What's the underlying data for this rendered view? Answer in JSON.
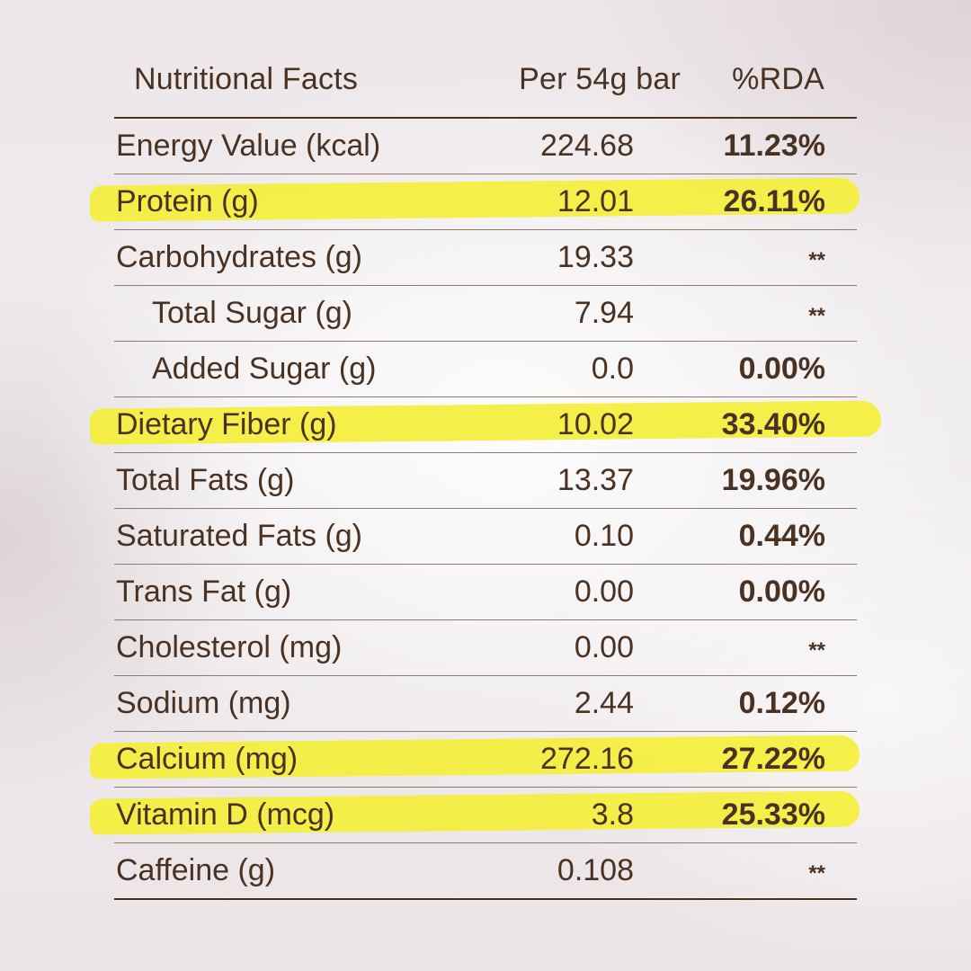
{
  "table": {
    "header": {
      "name": "Nutritional Facts",
      "per": "Per 54g bar",
      "rda": "%RDA"
    },
    "rows": [
      {
        "name": "Energy Value (kcal)",
        "per": "224.68",
        "rda": "11.23%"
      },
      {
        "name": "Protein (g)",
        "per": "12.01",
        "rda": "26.11%"
      },
      {
        "name": "Carbohydrates (g)",
        "per": "19.33",
        "rda": "**"
      },
      {
        "name": "Total Sugar (g)",
        "per": "7.94",
        "rda": "**"
      },
      {
        "name": "Added Sugar (g)",
        "per": "0.0",
        "rda": "0.00%"
      },
      {
        "name": "Dietary Fiber (g)",
        "per": "10.02",
        "rda": "33.40%"
      },
      {
        "name": "Total Fats (g)",
        "per": "13.37",
        "rda": "19.96%"
      },
      {
        "name": "Saturated Fats (g)",
        "per": "0.10",
        "rda": "0.44%"
      },
      {
        "name": "Trans Fat (g)",
        "per": "0.00",
        "rda": "0.00%"
      },
      {
        "name": "Cholesterol (mg)",
        "per": "0.00",
        "rda": "**"
      },
      {
        "name": "Sodium (mg)",
        "per": "2.44",
        "rda": "0.12%"
      },
      {
        "name": "Calcium (mg)",
        "per": "272.16",
        "rda": "27.22%"
      },
      {
        "name": "Vitamin D (mcg)",
        "per": "3.8",
        "rda": "25.33%"
      },
      {
        "name": "Caffeine (g)",
        "per": "0.108",
        "rda": "**"
      }
    ]
  },
  "colors": {
    "text": "#4a3222",
    "highlight": "#f3ee3f",
    "rule": "#8e7c72"
  }
}
